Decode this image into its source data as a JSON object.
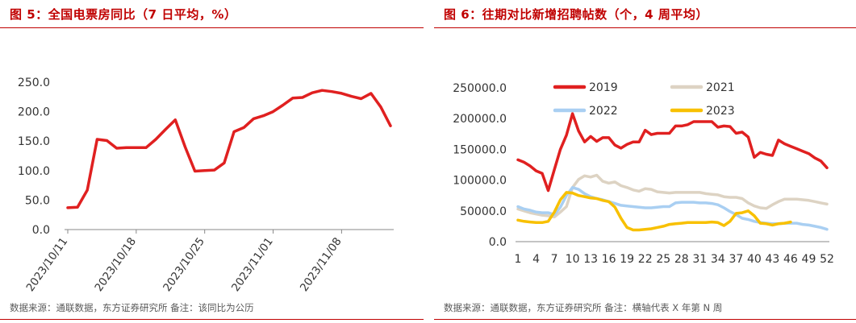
{
  "left": {
    "title": "图 5：全国电票房同比（7 日平均，%）",
    "source": "数据来源：通联数据，东方证券研究所 备注：该同比为公历",
    "chart_data": {
      "type": "line",
      "ylim": [
        0,
        250
      ],
      "yticks": [
        "0.0",
        "50.0",
        "100.0",
        "150.0",
        "200.0",
        "250.0"
      ],
      "xtick_labels": [
        "2023/10/11",
        "2023/10/18",
        "2023/10/25",
        "2023/11/01",
        "2023/11/08"
      ],
      "series": [
        {
          "color": "#e02020",
          "values": [
            37,
            38,
            67,
            153,
            151,
            138,
            139,
            139,
            139,
            153,
            170,
            186,
            140,
            99,
            100,
            101,
            113,
            166,
            173,
            188,
            193,
            200,
            211,
            223,
            224,
            232,
            236,
            234,
            231,
            226,
            222,
            231,
            208,
            176
          ]
        }
      ]
    }
  },
  "right": {
    "title": "图 6：往期对比新增招聘帖数（个，4 周平均）",
    "source": "数据来源：通联数据，东方证券研究所 备注：横轴代表 X 年第 N 周",
    "chart_data": {
      "type": "line",
      "ylim": [
        0,
        250000
      ],
      "yticks": [
        "0.0",
        "50000.0",
        "100000.0",
        "150000.0",
        "200000.0",
        "250000.0"
      ],
      "x_ticks": [
        1,
        4,
        7,
        10,
        13,
        16,
        19,
        22,
        25,
        28,
        31,
        34,
        37,
        40,
        43,
        46,
        49,
        52
      ],
      "legend": [
        "2019",
        "2021",
        "2022",
        "2023"
      ],
      "series": [
        {
          "name": "2019",
          "color": "#e02020",
          "x": [
            1,
            2,
            3,
            4,
            5,
            6,
            7,
            8,
            9,
            10,
            11,
            12,
            13,
            14,
            15,
            16,
            17,
            18,
            19,
            20,
            21,
            22,
            23,
            24,
            25,
            26,
            27,
            28,
            29,
            30,
            31,
            32,
            33,
            34,
            35,
            36,
            37,
            38,
            39,
            40,
            41,
            42,
            43,
            44,
            45,
            46,
            47,
            48,
            49,
            50,
            51,
            52
          ],
          "values": [
            133000,
            129000,
            123000,
            115000,
            111000,
            83000,
            117000,
            150000,
            173000,
            208000,
            180000,
            162000,
            171000,
            163000,
            169000,
            169000,
            157000,
            152000,
            158000,
            162000,
            162000,
            181000,
            174000,
            176000,
            176000,
            176000,
            188000,
            188000,
            190000,
            195000,
            195000,
            195000,
            195000,
            186000,
            188000,
            187000,
            176000,
            178000,
            170000,
            137000,
            145000,
            142000,
            140000,
            165000,
            159000,
            155000,
            151000,
            147000,
            143000,
            136000,
            131000,
            120000
          ]
        },
        {
          "name": "2021",
          "color": "#ddd3c3",
          "x": [
            1,
            2,
            3,
            4,
            5,
            6,
            7,
            8,
            9,
            10,
            11,
            12,
            13,
            14,
            15,
            16,
            17,
            18,
            19,
            20,
            21,
            22,
            23,
            24,
            25,
            26,
            27,
            28,
            29,
            30,
            31,
            32,
            33,
            34,
            35,
            36,
            37,
            38,
            39,
            40,
            41,
            42,
            43,
            44,
            45,
            46,
            47,
            48,
            49,
            50,
            51,
            52
          ],
          "values": [
            53000,
            50000,
            47000,
            45000,
            43000,
            42000,
            40000,
            48000,
            57000,
            88000,
            101000,
            107000,
            105000,
            108000,
            98000,
            95000,
            97000,
            91000,
            88000,
            84000,
            82000,
            86000,
            85000,
            81000,
            80000,
            79000,
            80000,
            80000,
            80000,
            80000,
            80000,
            78000,
            77000,
            76000,
            73000,
            72000,
            72000,
            70000,
            63000,
            58000,
            55000,
            54000,
            60000,
            65000,
            69000,
            69000,
            69000,
            68000,
            67000,
            65000,
            63000,
            61000
          ]
        },
        {
          "name": "2022",
          "color": "#a9cff2",
          "x": [
            1,
            2,
            3,
            4,
            5,
            6,
            7,
            8,
            9,
            10,
            11,
            12,
            13,
            14,
            15,
            16,
            17,
            18,
            19,
            20,
            21,
            22,
            23,
            24,
            25,
            26,
            27,
            28,
            29,
            30,
            31,
            32,
            33,
            34,
            35,
            36,
            37,
            38,
            39,
            40,
            41,
            42,
            43,
            44,
            45,
            46,
            47,
            48,
            49,
            50,
            51,
            52
          ],
          "values": [
            57000,
            53000,
            51000,
            48000,
            47000,
            47000,
            44000,
            56000,
            75000,
            88000,
            85000,
            78000,
            73000,
            70000,
            68000,
            65000,
            62000,
            59000,
            58000,
            57000,
            56000,
            55000,
            55000,
            56000,
            57000,
            57000,
            63000,
            64000,
            64000,
            64000,
            63000,
            63000,
            62000,
            60000,
            55000,
            49000,
            44000,
            38000,
            36000,
            33000,
            31000,
            30000,
            29000,
            29000,
            30000,
            30000,
            30000,
            28000,
            27000,
            25000,
            23000,
            20000
          ]
        },
        {
          "name": "2023",
          "color": "#f8c000",
          "x": [
            1,
            2,
            3,
            4,
            5,
            6,
            7,
            8,
            9,
            10,
            11,
            12,
            13,
            14,
            15,
            16,
            17,
            18,
            19,
            20,
            21,
            22,
            23,
            24,
            25,
            26,
            27,
            28,
            29,
            30,
            31,
            32,
            33,
            34,
            35,
            36,
            37,
            38,
            39,
            40,
            41,
            42,
            43,
            44,
            45,
            46
          ],
          "values": [
            35000,
            33000,
            32000,
            31000,
            31000,
            33000,
            48000,
            68000,
            80000,
            79000,
            75000,
            73000,
            71000,
            70000,
            67000,
            65000,
            56000,
            38000,
            23000,
            19000,
            19000,
            20000,
            21000,
            23000,
            25000,
            28000,
            29000,
            30000,
            31000,
            31000,
            31000,
            31000,
            32000,
            31000,
            26000,
            33000,
            46000,
            47000,
            50000,
            42000,
            30000,
            29000,
            27000,
            29000,
            30000,
            32000
          ]
        }
      ]
    }
  }
}
